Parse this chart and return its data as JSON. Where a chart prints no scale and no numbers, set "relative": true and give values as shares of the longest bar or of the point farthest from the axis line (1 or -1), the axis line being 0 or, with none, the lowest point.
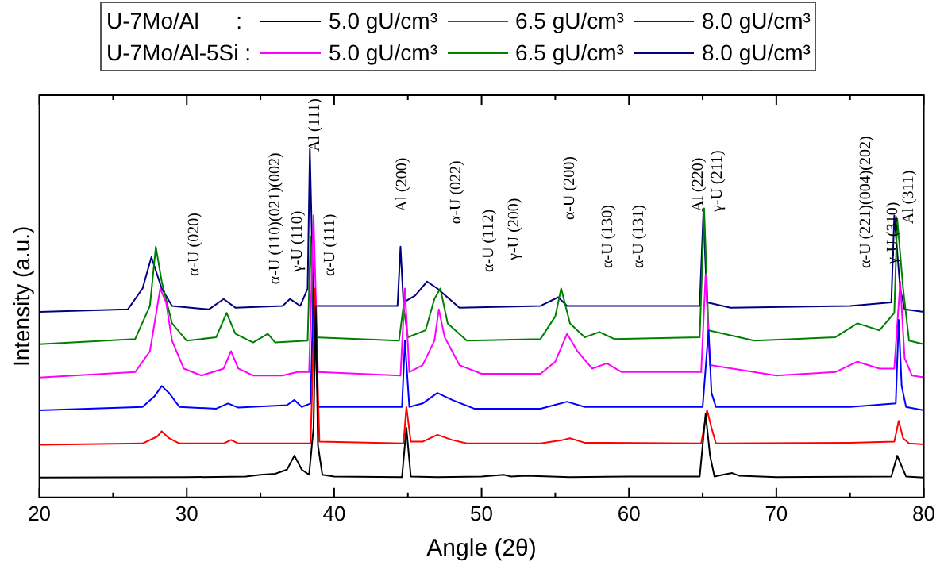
{
  "chart_data": {
    "type": "line",
    "relative": true,
    "xlabel": "Angle (2θ)",
    "ylabel": "Intensity (a.u.)",
    "xlim": [
      20,
      80
    ],
    "xticks": [
      20,
      {
        "value": 25,
        "label": null
      },
      30,
      {
        "value": 35,
        "label": null
      },
      40,
      {
        "value": 45,
        "label": null
      },
      50,
      {
        "value": 55,
        "label": null
      },
      60,
      {
        "value": 65,
        "label": null
      },
      70,
      {
        "value": 75,
        "label": null
      },
      80
    ],
    "legend": "top",
    "grid": false,
    "marker": "none",
    "line_style": "solid",
    "annotations": [
      "U-7Mo/Al      :",
      "U-7Mo/Al-5Si :",
      "α-U (020)",
      "α-U (110)(021)(002)",
      "γ-U (110)",
      "Al (111)",
      "α-U (111)",
      "Al (200)",
      "α-U (022)",
      "α-U (112)",
      "γ-U (200)",
      "α-U (200)",
      "α-U (130)",
      "α-U (131)",
      "Al (220)",
      "γ-U (211)",
      "α-U (221)(004)(202)",
      "γ-U (310)",
      "Al (311)"
    ],
    "series": [
      {
        "name": "5.0 gU/cm³",
        "color": "#000000",
        "x": [
          20,
          30,
          34,
          35,
          36,
          36.8,
          37.3,
          37.8,
          38.3,
          38.6,
          38.75,
          38.9,
          39.2,
          40,
          44.6,
          44.9,
          45.2,
          47,
          50,
          51.5,
          52,
          53,
          56,
          60,
          64.8,
          65.2,
          65.5,
          65.8,
          66.5,
          67,
          67.5,
          70,
          77.8,
          78.2,
          78.5,
          78.8,
          80
        ],
        "values": [
          0.057,
          0.058,
          0.06,
          0.065,
          0.068,
          0.08,
          0.12,
          0.08,
          0.065,
          0.2,
          0.55,
          0.15,
          0.065,
          0.06,
          0.058,
          0.2,
          0.06,
          0.058,
          0.06,
          0.065,
          0.06,
          0.062,
          0.058,
          0.06,
          0.06,
          0.24,
          0.12,
          0.06,
          0.066,
          0.07,
          0.062,
          0.058,
          0.06,
          0.12,
          0.09,
          0.06,
          0.057
        ]
      },
      {
        "name": "6.5 gU/cm³",
        "color": "#ff0000",
        "x": [
          20,
          27,
          28,
          28.3,
          28.8,
          29.5,
          32.5,
          33,
          33.5,
          38.4,
          38.7,
          39,
          44.7,
          44.9,
          45.2,
          46,
          47,
          48,
          49,
          54,
          55.5,
          56,
          57,
          64.9,
          65.3,
          65.6,
          65.9,
          75,
          78,
          78.3,
          78.6,
          79,
          80
        ],
        "values": [
          0.151,
          0.155,
          0.175,
          0.19,
          0.17,
          0.155,
          0.155,
          0.165,
          0.155,
          0.155,
          0.6,
          0.16,
          0.155,
          0.26,
          0.16,
          0.16,
          0.18,
          0.165,
          0.155,
          0.155,
          0.165,
          0.17,
          0.157,
          0.155,
          0.25,
          0.2,
          0.155,
          0.157,
          0.16,
          0.22,
          0.17,
          0.155,
          0.152
        ]
      },
      {
        "name": "8.0 gU/cm³",
        "color": "#0000ff",
        "x": [
          20,
          27,
          27.8,
          28.3,
          28.8,
          29.5,
          32,
          32.8,
          33.5,
          36.8,
          37.3,
          37.8,
          38.4,
          38.6,
          38.9,
          44.6,
          44.8,
          45.1,
          46,
          47,
          48,
          49.5,
          54,
          55.8,
          57,
          65,
          65.4,
          65.6,
          65.9,
          75,
          78.1,
          78.3,
          78.5,
          78.8,
          80
        ],
        "values": [
          0.25,
          0.26,
          0.29,
          0.32,
          0.3,
          0.26,
          0.255,
          0.27,
          0.258,
          0.265,
          0.28,
          0.26,
          0.27,
          0.6,
          0.26,
          0.26,
          0.45,
          0.26,
          0.27,
          0.3,
          0.28,
          0.255,
          0.255,
          0.275,
          0.26,
          0.26,
          0.48,
          0.3,
          0.26,
          0.26,
          0.27,
          0.51,
          0.32,
          0.26,
          0.25
        ]
      },
      {
        "name": "5.0 gU/cm³",
        "color": "#ff00ff",
        "x": [
          20,
          26.5,
          27.5,
          28.2,
          28.6,
          29,
          29.8,
          31,
          32.5,
          33,
          33.5,
          34.5,
          36.5,
          37.5,
          38.3,
          38.6,
          38.9,
          44.5,
          44.8,
          45.1,
          46,
          46.8,
          47.1,
          47.5,
          48.5,
          50,
          54,
          55,
          55.8,
          56.5,
          57.5,
          58.5,
          59.5,
          64.9,
          65.2,
          65.5,
          70,
          74,
          75.5,
          77,
          78,
          78.4,
          78.7,
          79.2,
          80
        ],
        "values": [
          0.344,
          0.36,
          0.42,
          0.6,
          0.56,
          0.45,
          0.37,
          0.35,
          0.37,
          0.42,
          0.37,
          0.35,
          0.35,
          0.36,
          0.36,
          0.81,
          0.36,
          0.35,
          0.6,
          0.36,
          0.38,
          0.45,
          0.54,
          0.46,
          0.38,
          0.355,
          0.355,
          0.39,
          0.47,
          0.42,
          0.37,
          0.385,
          0.36,
          0.36,
          0.64,
          0.38,
          0.35,
          0.36,
          0.39,
          0.37,
          0.37,
          0.62,
          0.4,
          0.35,
          0.345
        ]
      },
      {
        "name": "6.5 gU/cm³",
        "color": "#008000",
        "x": [
          20,
          26.5,
          27.5,
          27.9,
          28.3,
          29,
          30,
          32,
          32.7,
          33.3,
          34.5,
          35.5,
          36,
          38.2,
          38.4,
          38.6,
          44.4,
          44.7,
          45,
          46.2,
          46.8,
          47.2,
          47.7,
          49,
          54,
          55,
          55.4,
          56,
          57,
          58,
          59,
          64.8,
          65.1,
          65.4,
          68.5,
          74,
          75.5,
          77,
          78,
          78.2,
          78.6,
          79,
          80
        ],
        "values": [
          0.44,
          0.455,
          0.55,
          0.72,
          0.62,
          0.5,
          0.45,
          0.46,
          0.53,
          0.47,
          0.445,
          0.47,
          0.445,
          0.45,
          0.75,
          0.46,
          0.45,
          0.55,
          0.46,
          0.48,
          0.57,
          0.6,
          0.5,
          0.45,
          0.455,
          0.52,
          0.6,
          0.5,
          0.46,
          0.475,
          0.455,
          0.46,
          0.83,
          0.48,
          0.45,
          0.46,
          0.5,
          0.48,
          0.53,
          0.8,
          0.6,
          0.45,
          0.44
        ]
      },
      {
        "name": "8.0 gU/cm³",
        "color": "#000080",
        "x": [
          20,
          26,
          27,
          27.6,
          28.3,
          29,
          31.5,
          32.5,
          33.3,
          36.5,
          37,
          37.7,
          38.2,
          38.35,
          38.6,
          44.3,
          44.5,
          44.7,
          45.5,
          46.3,
          47,
          48.5,
          54,
          55.2,
          55.8,
          64.8,
          65.05,
          65.3,
          66.9,
          75,
          77.8,
          78,
          78.4,
          78.7,
          80
        ],
        "values": [
          0.533,
          0.54,
          0.6,
          0.69,
          0.6,
          0.55,
          0.54,
          0.57,
          0.545,
          0.55,
          0.57,
          0.55,
          0.6,
          1.0,
          0.55,
          0.55,
          0.72,
          0.56,
          0.58,
          0.62,
          0.6,
          0.545,
          0.55,
          0.575,
          0.55,
          0.55,
          0.82,
          0.56,
          0.545,
          0.55,
          0.56,
          0.81,
          0.6,
          0.54,
          0.533
        ]
      }
    ]
  }
}
